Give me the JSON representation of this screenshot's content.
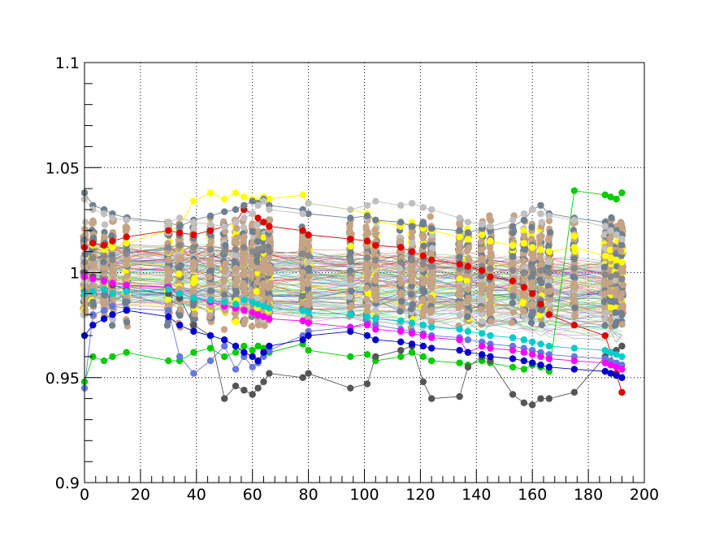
{
  "chart_data": {
    "type": "scatter",
    "title": "",
    "xlabel": "",
    "ylabel": "",
    "xlim": [
      0,
      200
    ],
    "ylim": [
      0.9,
      1.1
    ],
    "grid": true,
    "grid_style": "dotted",
    "legend": "none",
    "x_ticks": [
      0,
      20,
      40,
      60,
      80,
      100,
      120,
      140,
      160,
      180,
      200
    ],
    "x_tick_labels": [
      "0",
      "20",
      "40",
      "60",
      "80",
      "100",
      "120",
      "140",
      "160",
      "180",
      "200"
    ],
    "y_ticks": [
      0.9,
      0.95,
      1.0,
      1.05,
      1.1
    ],
    "y_tick_labels": [
      "0.9",
      "0.95",
      "1",
      "1.05",
      "1.1"
    ],
    "x_groups": [
      0,
      3,
      7,
      10,
      15,
      30,
      34,
      39,
      45,
      50,
      54,
      57,
      60,
      62,
      64,
      66,
      78,
      80,
      95,
      101,
      104,
      113,
      117,
      121,
      124,
      134,
      137,
      142,
      145,
      153,
      157,
      160,
      163,
      166,
      175,
      186,
      188,
      190,
      192
    ],
    "colors": [
      "#dd0000",
      "#00cc00",
      "#ffff00",
      "#ff00ff",
      "#00cccc",
      "#0000cc",
      "#888888",
      "#c0c0c0",
      "#708090",
      "#c4a484",
      "#555555",
      "#6677dd",
      "#55cc55",
      "#bfd8d0"
    ],
    "series": [
      {
        "color": "#c4a484",
        "values": [
          1.0,
          1.003,
          1.002,
          1.001,
          1.004,
          1.006,
          1.007,
          1.005,
          1.004,
          1.003,
          1.002,
          1.004,
          1.003,
          1.002,
          1.001,
          1.003,
          1.0,
          0.998,
          0.997,
          0.998,
          0.996,
          0.995,
          0.996,
          0.995,
          0.994,
          0.993,
          0.992,
          0.994,
          0.993,
          0.992,
          0.991,
          0.993,
          0.992,
          0.991,
          0.993,
          0.99,
          0.991,
          0.992,
          0.99
        ]
      },
      {
        "color": "#888888",
        "values": [
          1.005,
          1.007,
          1.008,
          1.006,
          1.009,
          1.012,
          1.013,
          1.012,
          1.011,
          1.01,
          1.011,
          1.012,
          1.01,
          1.011,
          1.012,
          1.01,
          1.009,
          1.008,
          1.006,
          1.007,
          1.006,
          1.005,
          1.006,
          1.004,
          1.003,
          1.002,
          1.001,
          1.003,
          1.002,
          1.001,
          1.0,
          1.002,
          1.001,
          1.0,
          1.002,
          0.999,
          0.998,
          0.999,
          0.997
        ]
      },
      {
        "color": "#ffff00",
        "values": [
          1.012,
          1.013,
          1.011,
          1.012,
          1.014,
          1.02,
          1.022,
          1.034,
          1.038,
          1.035,
          1.038,
          1.036,
          1.035,
          1.034,
          1.036,
          1.035,
          1.037,
          1.033,
          1.03,
          1.028,
          1.025,
          1.022,
          1.024,
          1.021,
          1.02,
          1.017,
          1.016,
          1.018,
          1.015,
          1.013,
          1.014,
          1.012,
          1.011,
          1.01,
          1.012,
          1.008,
          1.007,
          1.006,
          1.005
        ]
      },
      {
        "color": "#00cc00",
        "values": [
          0.948,
          0.96,
          0.958,
          0.96,
          0.962,
          0.958,
          0.958,
          0.962,
          0.964,
          0.96,
          0.962,
          0.965,
          0.963,
          0.965,
          0.964,
          0.962,
          0.966,
          0.963,
          0.96,
          0.961,
          0.958,
          0.96,
          0.962,
          0.96,
          0.958,
          0.957,
          0.956,
          0.958,
          0.957,
          0.955,
          0.954,
          0.956,
          0.955,
          0.953,
          1.039,
          1.037,
          1.036,
          1.035,
          1.038
        ]
      },
      {
        "color": "#dd0000",
        "values": [
          1.012,
          1.014,
          1.013,
          1.015,
          1.017,
          1.02,
          1.019,
          1.018,
          1.02,
          1.022,
          1.024,
          1.03,
          1.028,
          1.026,
          1.024,
          1.022,
          1.02,
          1.018,
          1.016,
          1.015,
          1.013,
          1.012,
          1.01,
          1.008,
          1.006,
          1.004,
          1.003,
          1.001,
          0.998,
          0.996,
          0.993,
          0.99,
          0.985,
          0.98,
          0.975,
          0.97,
          0.962,
          0.952,
          0.943
        ]
      },
      {
        "color": "#555555",
        "values": [
          1.0,
          0.998,
          0.996,
          0.994,
          0.992,
          0.99,
          0.988,
          0.975,
          0.97,
          0.94,
          0.946,
          0.944,
          0.942,
          0.945,
          0.948,
          0.952,
          0.95,
          0.952,
          0.945,
          0.947,
          0.96,
          0.963,
          0.965,
          0.948,
          0.94,
          0.941,
          0.955,
          0.96,
          0.958,
          0.942,
          0.938,
          0.937,
          0.94,
          0.94,
          0.943,
          0.96,
          0.962,
          0.963,
          0.965
        ]
      },
      {
        "color": "#6677dd",
        "values": [
          0.945,
          0.98,
          0.982,
          0.984,
          0.983,
          0.982,
          0.96,
          0.952,
          0.958,
          0.965,
          0.954,
          0.96,
          0.955,
          0.957,
          0.96,
          0.963,
          0.97,
          0.972,
          0.974,
          0.976,
          0.975,
          0.973,
          0.972,
          0.971,
          0.97,
          0.969,
          0.968,
          0.967,
          0.966,
          0.965,
          0.964,
          0.963,
          0.962,
          0.961,
          0.96,
          0.959,
          0.958,
          0.957,
          0.956
        ]
      },
      {
        "color": "#ff00ff",
        "values": [
          0.998,
          0.997,
          0.996,
          0.995,
          0.994,
          0.993,
          0.99,
          0.988,
          0.986,
          0.984,
          0.983,
          0.982,
          0.981,
          0.98,
          0.979,
          0.978,
          0.977,
          0.976,
          0.974,
          0.975,
          0.973,
          0.972,
          0.971,
          0.97,
          0.969,
          0.968,
          0.962,
          0.965,
          0.964,
          0.963,
          0.962,
          0.961,
          0.96,
          0.959,
          0.958,
          0.957,
          0.956,
          0.955,
          0.954
        ]
      },
      {
        "color": "#708090",
        "values": [
          1.038,
          1.032,
          1.03,
          1.028,
          1.026,
          1.024,
          1.022,
          1.025,
          1.027,
          1.029,
          1.03,
          1.032,
          1.034,
          1.033,
          1.035,
          1.032,
          1.03,
          1.028,
          1.026,
          1.027,
          1.025,
          1.024,
          1.022,
          1.023,
          1.021,
          1.02,
          1.019,
          1.021,
          1.02,
          1.022,
          1.025,
          1.03,
          1.032,
          1.028,
          1.026,
          1.024,
          1.022,
          1.02,
          1.018
        ]
      },
      {
        "color": "#c0c0c0",
        "values": [
          1.035,
          1.03,
          1.028,
          1.026,
          1.025,
          1.024,
          1.026,
          1.024,
          1.023,
          1.022,
          1.024,
          1.026,
          1.028,
          1.032,
          1.034,
          1.03,
          1.028,
          1.033,
          1.03,
          1.032,
          1.034,
          1.032,
          1.033,
          1.031,
          1.03,
          1.026,
          1.024,
          1.023,
          1.022,
          1.025,
          1.028,
          1.03,
          1.028,
          1.027,
          1.025,
          1.022,
          1.02,
          1.018,
          1.016
        ]
      },
      {
        "color": "#00cccc",
        "values": [
          0.99,
          0.991,
          0.992,
          0.99,
          0.991,
          0.992,
          0.99,
          0.988,
          0.987,
          0.986,
          0.985,
          0.987,
          0.986,
          0.985,
          0.984,
          0.983,
          0.982,
          0.981,
          0.98,
          0.979,
          0.978,
          0.977,
          0.976,
          0.975,
          0.974,
          0.973,
          0.972,
          0.971,
          0.97,
          0.969,
          0.968,
          0.967,
          0.966,
          0.965,
          0.964,
          0.963,
          0.962,
          0.961,
          0.96
        ]
      },
      {
        "color": "#0000cc",
        "values": [
          0.97,
          0.975,
          0.978,
          0.98,
          0.982,
          0.979,
          0.975,
          0.972,
          0.97,
          0.968,
          0.965,
          0.962,
          0.96,
          0.958,
          0.962,
          0.965,
          0.968,
          0.97,
          0.972,
          0.97,
          0.968,
          0.967,
          0.966,
          0.965,
          0.964,
          0.963,
          0.962,
          0.961,
          0.96,
          0.959,
          0.958,
          0.957,
          0.956,
          0.955,
          0.954,
          0.953,
          0.952,
          0.951,
          0.95
        ]
      }
    ]
  }
}
